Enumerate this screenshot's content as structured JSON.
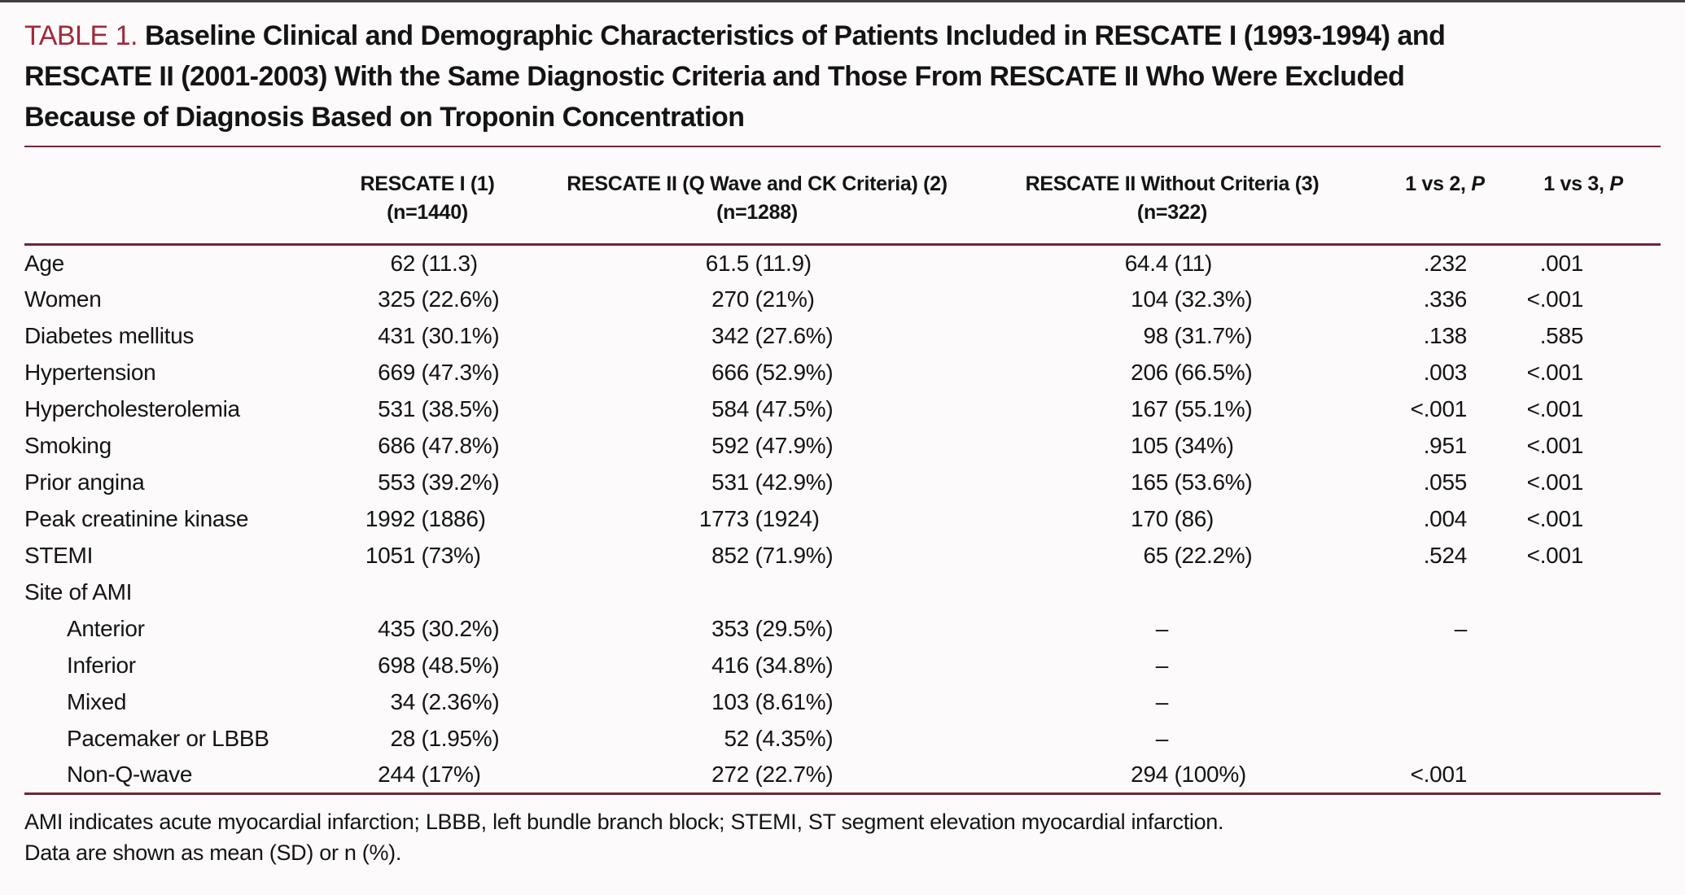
{
  "colors": {
    "accent": "#a2283c",
    "rule": "#6f2637",
    "text": "#141414",
    "background": "#fcfafa"
  },
  "title": {
    "tag": "TABLE 1.",
    "line1": "Baseline Clinical and Demographic Characteristics of Patients Included in RESCATE I (1993-1994) and",
    "line2": "RESCATE II (2001-2003) With the Same Diagnostic Criteria and Those From RESCATE II Who Were Excluded",
    "line3": "Because of Diagnosis Based on Troponin Concentration"
  },
  "table": {
    "columns": [
      {
        "title": "RESCATE I (1)",
        "sub": "(n=1440)",
        "p": ""
      },
      {
        "title": "RESCATE II (Q Wave and CK Criteria) (2)",
        "sub": "(n=1288)",
        "p": ""
      },
      {
        "title": "RESCATE II Without Criteria (3)",
        "sub": "(n=322)",
        "p": ""
      },
      {
        "title": "1 vs 2,",
        "sub": "",
        "p": "P"
      },
      {
        "title": "1 vs 3,",
        "sub": "",
        "p": "P"
      }
    ],
    "rows": [
      {
        "label": "Age",
        "indent": 0,
        "cells": [
          "62 (11.3)",
          "61.5 (11.9)",
          "64.4 (11)",
          ".232",
          ".001"
        ]
      },
      {
        "label": "Women",
        "indent": 0,
        "cells": [
          "325 (22.6%)",
          "270 (21%)",
          "104 (32.3%)",
          ".336",
          "<.001"
        ]
      },
      {
        "label": "Diabetes mellitus",
        "indent": 0,
        "cells": [
          "431 (30.1%)",
          "342 (27.6%)",
          "98 (31.7%)",
          ".138",
          ".585"
        ]
      },
      {
        "label": "Hypertension",
        "indent": 0,
        "cells": [
          "669 (47.3%)",
          "666 (52.9%)",
          "206 (66.5%)",
          ".003",
          "<.001"
        ]
      },
      {
        "label": "Hypercholesterolemia",
        "indent": 0,
        "cells": [
          "531 (38.5%)",
          "584 (47.5%)",
          "167 (55.1%)",
          "<.001",
          "<.001"
        ]
      },
      {
        "label": "Smoking",
        "indent": 0,
        "cells": [
          "686 (47.8%)",
          "592 (47.9%)",
          "105 (34%)",
          ".951",
          "<.001"
        ]
      },
      {
        "label": "Prior angina",
        "indent": 0,
        "cells": [
          "553 (39.2%)",
          "531 (42.9%)",
          "165 (53.6%)",
          ".055",
          "<.001"
        ]
      },
      {
        "label": "Peak creatinine kinase",
        "indent": 0,
        "cells": [
          "1992 (1886)",
          "1773 (1924)",
          "170 (86)",
          ".004",
          "<.001"
        ]
      },
      {
        "label": "STEMI",
        "indent": 0,
        "cells": [
          "1051 (73%)",
          "852 (71.9%)",
          "65 (22.2%)",
          ".524",
          "<.001"
        ]
      },
      {
        "label": "Site of AMI",
        "indent": 0,
        "cells": [
          "",
          "",
          "",
          "",
          ""
        ]
      },
      {
        "label": "Anterior",
        "indent": 1,
        "cells": [
          "435 (30.2%)",
          "353 (29.5%)",
          "–",
          "–",
          ""
        ]
      },
      {
        "label": "Inferior",
        "indent": 1,
        "cells": [
          "698 (48.5%)",
          "416 (34.8%)",
          "–",
          "",
          ""
        ]
      },
      {
        "label": "Mixed",
        "indent": 1,
        "cells": [
          "34 (2.36%)",
          "103 (8.61%)",
          "–",
          "",
          ""
        ]
      },
      {
        "label": "Pacemaker or LBBB",
        "indent": 1,
        "cells": [
          "28 (1.95%)",
          "52 (4.35%)",
          "–",
          "",
          ""
        ]
      },
      {
        "label": "Non-Q-wave",
        "indent": 1,
        "cells": [
          "244 (17%)",
          "272 (22.7%)",
          "294 (100%)",
          "<.001",
          ""
        ]
      }
    ]
  },
  "footnotes": [
    "AMI indicates acute myocardial infarction; LBBB, left bundle branch block; STEMI, ST segment elevation myocardial infarction.",
    "Data are shown as mean (SD) or n (%)."
  ]
}
